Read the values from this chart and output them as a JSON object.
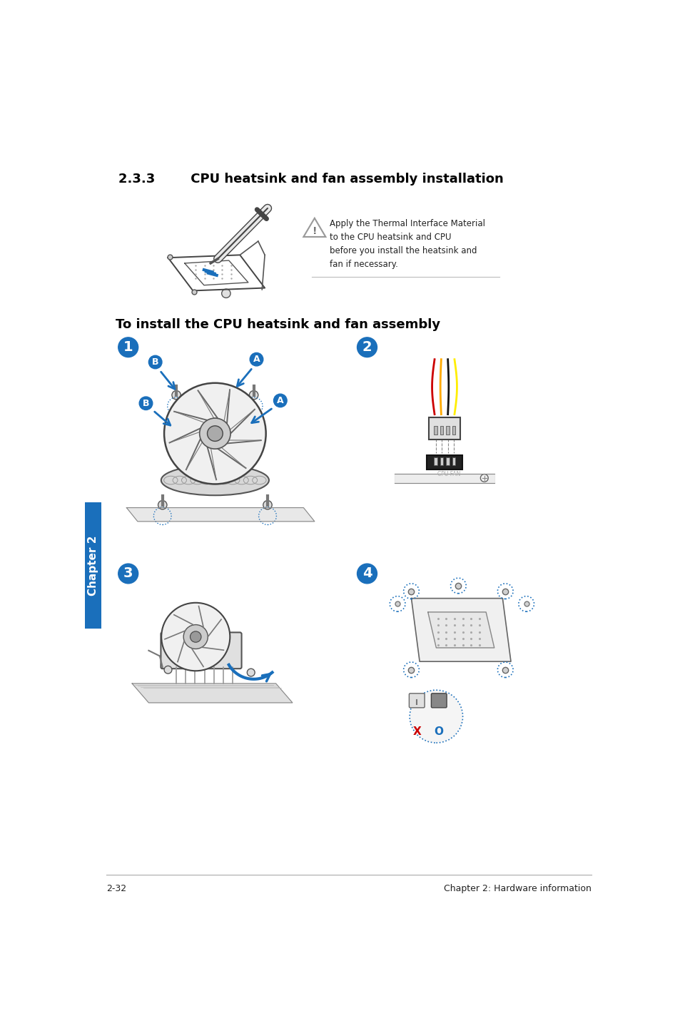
{
  "title_section": "2.3.3        CPU heatsink and fan assembly installation",
  "subtitle": "To install the CPU heatsink and fan assembly",
  "warning_text": "Apply the Thermal Interface Material\nto the CPU heatsink and CPU\nbefore you install the heatsink and\nfan if necessary.",
  "footer_left": "2-32",
  "footer_right": "Chapter 2: Hardware information",
  "chapter_tab": "Chapter 2",
  "bg_color": "#ffffff",
  "text_color": "#000000",
  "blue_color": "#1a6fbb",
  "step_circle_color": "#1a6fbb",
  "tab_color": "#1a6fbb",
  "red_color": "#cc0000",
  "gray_line": "#aaaaaa",
  "dark_line": "#333333"
}
